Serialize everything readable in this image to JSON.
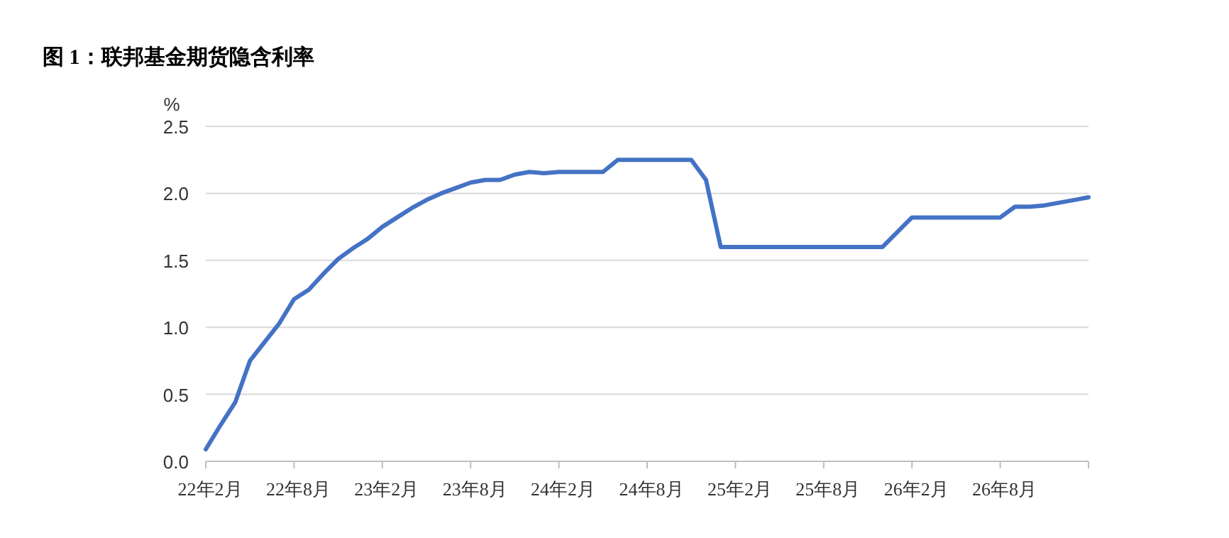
{
  "chart_data": {
    "type": "line",
    "title": "图 1：联邦基金期货隐含利率",
    "ylabel": "%",
    "categories": [
      "22年2月",
      null,
      null,
      null,
      null,
      null,
      "22年8月",
      null,
      null,
      null,
      null,
      null,
      "23年2月",
      null,
      null,
      null,
      null,
      null,
      "23年8月",
      null,
      null,
      null,
      null,
      null,
      "24年2月",
      null,
      null,
      null,
      null,
      null,
      "24年8月",
      null,
      null,
      null,
      null,
      null,
      "25年2月",
      null,
      null,
      null,
      null,
      null,
      "25年8月",
      null,
      null,
      null,
      null,
      null,
      "26年2月",
      null,
      null,
      null,
      null,
      null,
      "26年8月",
      null,
      null,
      null,
      null,
      null,
      null
    ],
    "series": [
      {
        "color": "#4472c4",
        "values": [
          0.09,
          0.27,
          0.44,
          0.75,
          0.89,
          1.03,
          1.21,
          1.28,
          1.4,
          1.51,
          1.59,
          1.66,
          1.75,
          1.82,
          1.89,
          1.95,
          2.0,
          2.04,
          2.08,
          2.1,
          2.1,
          2.14,
          2.16,
          2.15,
          2.16,
          2.16,
          2.16,
          2.16,
          2.25,
          2.25,
          2.25,
          2.25,
          2.25,
          2.25,
          2.1,
          1.6,
          1.6,
          1.6,
          1.6,
          1.6,
          1.6,
          1.6,
          1.6,
          1.6,
          1.6,
          1.6,
          1.6,
          1.71,
          1.82,
          1.82,
          1.82,
          1.82,
          1.82,
          1.82,
          1.82,
          1.9,
          1.9,
          1.91,
          1.93,
          1.95,
          1.97
        ]
      }
    ],
    "ylim": [
      0,
      2.5
    ],
    "yticks": [
      {
        "value": 0,
        "label": "0.0"
      },
      {
        "value": 0.5,
        "label": "0.5"
      },
      {
        "value": 1,
        "label": "1.0"
      },
      {
        "value": 1.5,
        "label": "1.5"
      },
      {
        "value": 2,
        "label": "2.0"
      },
      {
        "value": 2.5,
        "label": "2.5"
      }
    ],
    "grid": "y",
    "line_style": "solid"
  }
}
